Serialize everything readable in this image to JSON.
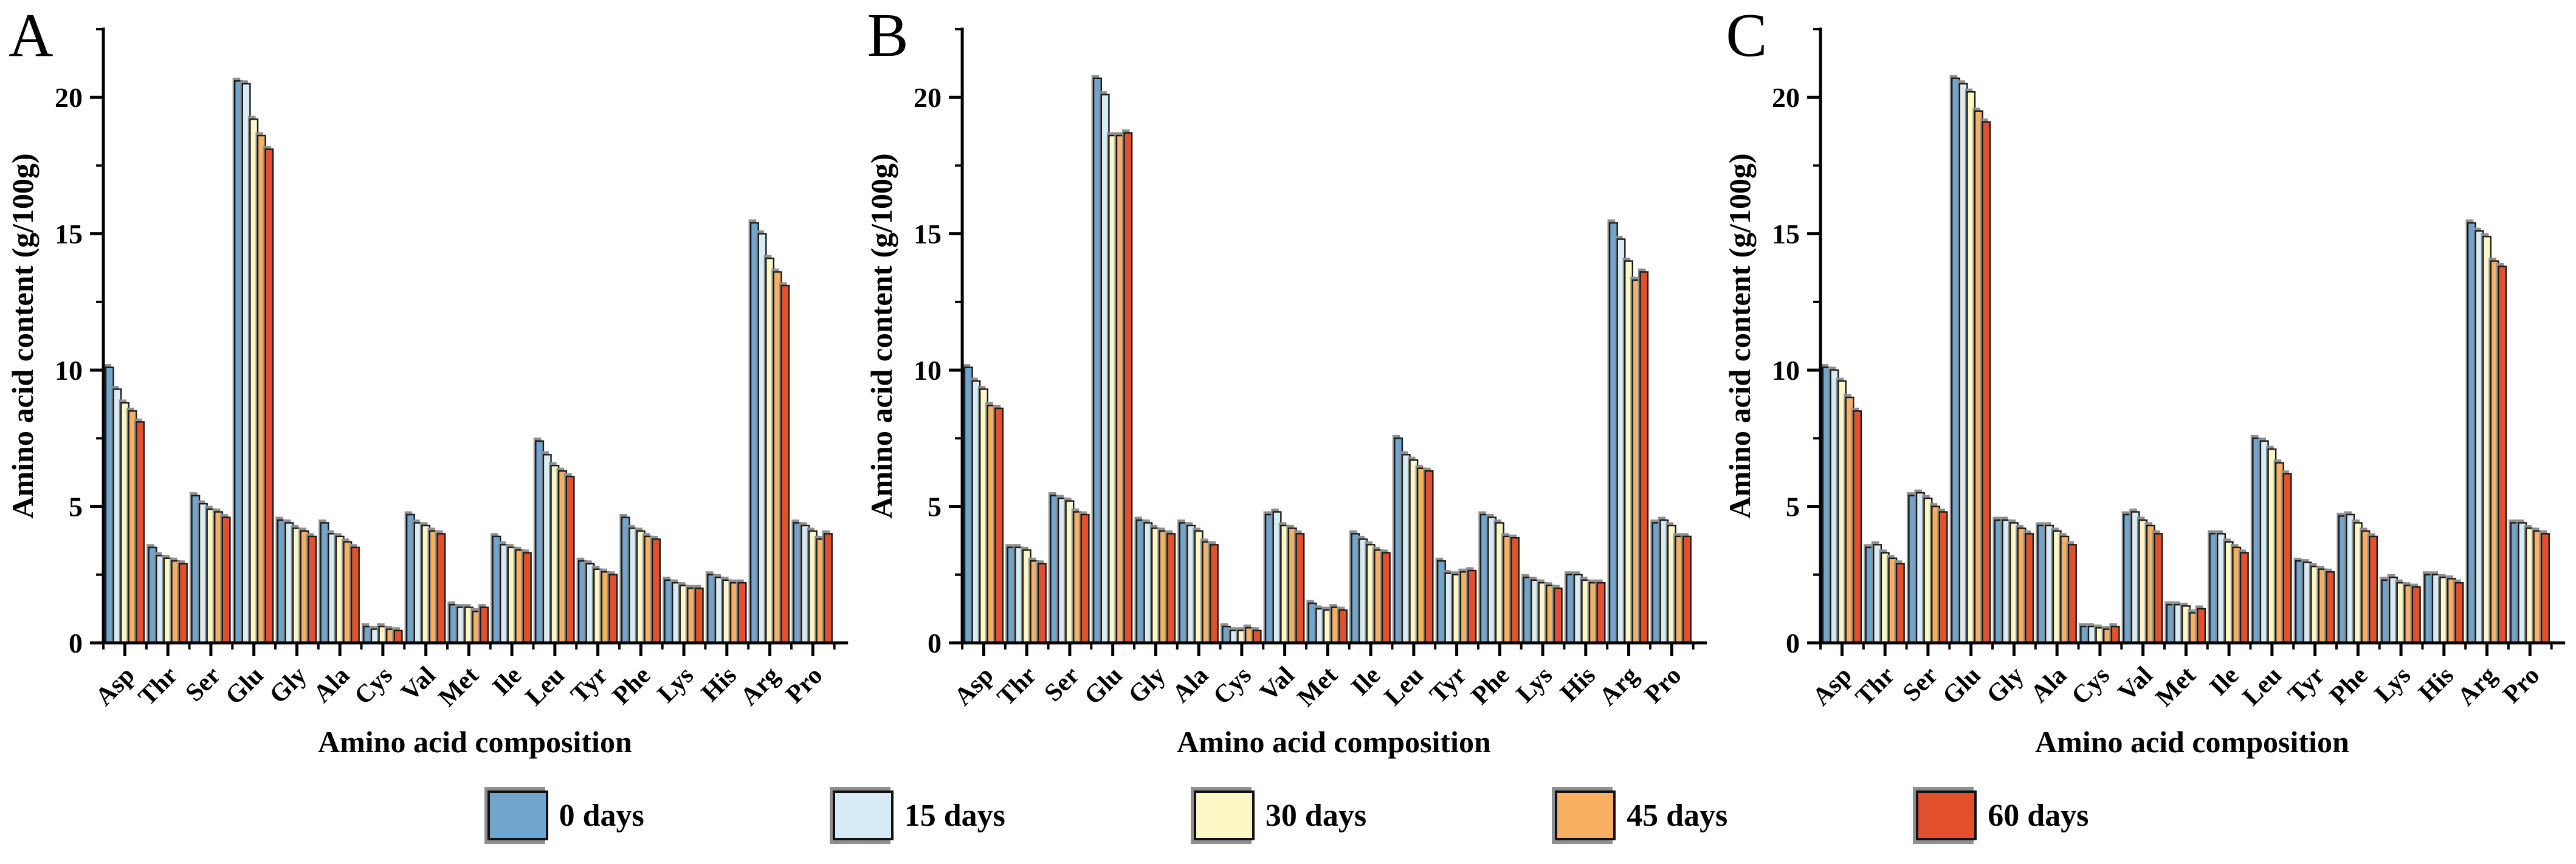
{
  "figure": {
    "legend": [
      {
        "label": "0 days",
        "color": "#6FA5CE"
      },
      {
        "label": "15 days",
        "color": "#D8ECF5"
      },
      {
        "label": "30 days",
        "color": "#FBF8C6"
      },
      {
        "label": "45 days",
        "color": "#F7B061"
      },
      {
        "label": "60 days",
        "color": "#E3502E"
      }
    ],
    "bar_border_color": "#1a1a1a",
    "bar_shadow_color": "#8f8f8f",
    "axis_color": "#000000",
    "y_ticks": [
      0,
      5,
      10,
      15,
      20
    ],
    "y_minor_step": 2.5,
    "legend_position": "bottom",
    "grid": "off"
  },
  "chart_data": [
    {
      "type": "bar",
      "panel_label": "A",
      "xlabel": "Amino acid composition",
      "ylabel": "Amino acid content (g/100g)",
      "ylim": [
        0,
        22.5
      ],
      "categories": [
        "Asp",
        "Thr",
        "Ser",
        "Glu",
        "Gly",
        "Ala",
        "Cys",
        "Val",
        "Met",
        "Ile",
        "Leu",
        "Tyr",
        "Phe",
        "Lys",
        "His",
        "Arg",
        "Pro"
      ],
      "series": [
        {
          "name": "0 days",
          "values": [
            10.1,
            3.5,
            5.4,
            20.6,
            4.5,
            4.4,
            0.6,
            4.7,
            1.4,
            3.9,
            7.4,
            3.0,
            4.6,
            2.3,
            2.5,
            15.4,
            4.4
          ]
        },
        {
          "name": "15 days",
          "values": [
            9.3,
            3.2,
            5.1,
            20.5,
            4.4,
            4.0,
            0.5,
            4.4,
            1.3,
            3.6,
            6.9,
            2.9,
            4.2,
            2.2,
            2.4,
            15.0,
            4.3
          ]
        },
        {
          "name": "30 days",
          "values": [
            8.8,
            3.1,
            4.9,
            19.2,
            4.2,
            3.9,
            0.6,
            4.3,
            1.3,
            3.5,
            6.5,
            2.7,
            4.1,
            2.1,
            2.3,
            14.1,
            4.1
          ]
        },
        {
          "name": "45 days",
          "values": [
            8.5,
            3.0,
            4.8,
            18.6,
            4.1,
            3.7,
            0.5,
            4.1,
            1.15,
            3.4,
            6.3,
            2.6,
            3.9,
            2.0,
            2.2,
            13.6,
            3.8
          ]
        },
        {
          "name": "60 days",
          "values": [
            8.1,
            2.9,
            4.6,
            18.1,
            3.9,
            3.5,
            0.45,
            4.0,
            1.3,
            3.3,
            6.1,
            2.5,
            3.8,
            2.0,
            2.2,
            13.1,
            4.0
          ]
        }
      ]
    },
    {
      "type": "bar",
      "panel_label": "B",
      "xlabel": "Amino acid composition",
      "ylabel": "Amino acid content (g/100g)",
      "ylim": [
        0,
        22.5
      ],
      "categories": [
        "Asp",
        "Thr",
        "Ser",
        "Glu",
        "Gly",
        "Ala",
        "Cys",
        "Val",
        "Met",
        "Ile",
        "Leu",
        "Tyr",
        "Phe",
        "Lys",
        "His",
        "Arg",
        "Pro"
      ],
      "series": [
        {
          "name": "0 days",
          "values": [
            10.1,
            3.5,
            5.4,
            20.7,
            4.5,
            4.4,
            0.6,
            4.7,
            1.45,
            4.0,
            7.5,
            3.0,
            4.7,
            2.4,
            2.5,
            15.4,
            4.4
          ]
        },
        {
          "name": "15 days",
          "values": [
            9.6,
            3.5,
            5.3,
            20.1,
            4.4,
            4.3,
            0.45,
            4.8,
            1.25,
            3.8,
            6.9,
            2.55,
            4.6,
            2.3,
            2.5,
            14.8,
            4.5
          ]
        },
        {
          "name": "30 days",
          "values": [
            9.3,
            3.4,
            5.2,
            18.6,
            4.2,
            4.1,
            0.45,
            4.3,
            1.2,
            3.6,
            6.7,
            2.5,
            4.4,
            2.2,
            2.3,
            14.0,
            4.3
          ]
        },
        {
          "name": "45 days",
          "values": [
            8.7,
            3.0,
            4.8,
            18.6,
            4.1,
            3.7,
            0.55,
            4.2,
            1.3,
            3.4,
            6.4,
            2.6,
            3.9,
            2.1,
            2.2,
            13.3,
            3.9
          ]
        },
        {
          "name": "60 days",
          "values": [
            8.6,
            2.9,
            4.7,
            18.7,
            4.0,
            3.6,
            0.45,
            4.0,
            1.2,
            3.3,
            6.3,
            2.65,
            3.85,
            2.0,
            2.2,
            13.6,
            3.9
          ]
        }
      ]
    },
    {
      "type": "bar",
      "panel_label": "C",
      "xlabel": "Amino acid composition",
      "ylabel": "Amino acid content (g/100g)",
      "ylim": [
        0,
        22.5
      ],
      "categories": [
        "Asp",
        "Thr",
        "Ser",
        "Glu",
        "Gly",
        "Ala",
        "Cys",
        "Val",
        "Met",
        "Ile",
        "Leu",
        "Tyr",
        "Phe",
        "Lys",
        "His",
        "Arg",
        "Pro"
      ],
      "series": [
        {
          "name": "0 days",
          "values": [
            10.1,
            3.5,
            5.4,
            20.7,
            4.5,
            4.3,
            0.6,
            4.7,
            1.4,
            4.0,
            7.5,
            3.0,
            4.65,
            2.3,
            2.5,
            15.4,
            4.4
          ]
        },
        {
          "name": "15 days",
          "values": [
            10.0,
            3.6,
            5.5,
            20.5,
            4.5,
            4.3,
            0.6,
            4.8,
            1.4,
            4.0,
            7.4,
            2.95,
            4.7,
            2.4,
            2.5,
            15.1,
            4.4
          ]
        },
        {
          "name": "30 days",
          "values": [
            9.6,
            3.3,
            5.3,
            20.2,
            4.4,
            4.1,
            0.55,
            4.5,
            1.35,
            3.7,
            7.1,
            2.8,
            4.4,
            2.2,
            2.4,
            14.9,
            4.2
          ]
        },
        {
          "name": "45 days",
          "values": [
            9.0,
            3.1,
            5.0,
            19.5,
            4.2,
            3.9,
            0.5,
            4.3,
            1.1,
            3.5,
            6.6,
            2.7,
            4.1,
            2.1,
            2.35,
            14.0,
            4.1
          ]
        },
        {
          "name": "60 days",
          "values": [
            8.5,
            2.9,
            4.8,
            19.1,
            4.0,
            3.6,
            0.6,
            4.0,
            1.25,
            3.3,
            6.2,
            2.6,
            3.9,
            2.05,
            2.2,
            13.8,
            4.0
          ]
        }
      ]
    }
  ]
}
